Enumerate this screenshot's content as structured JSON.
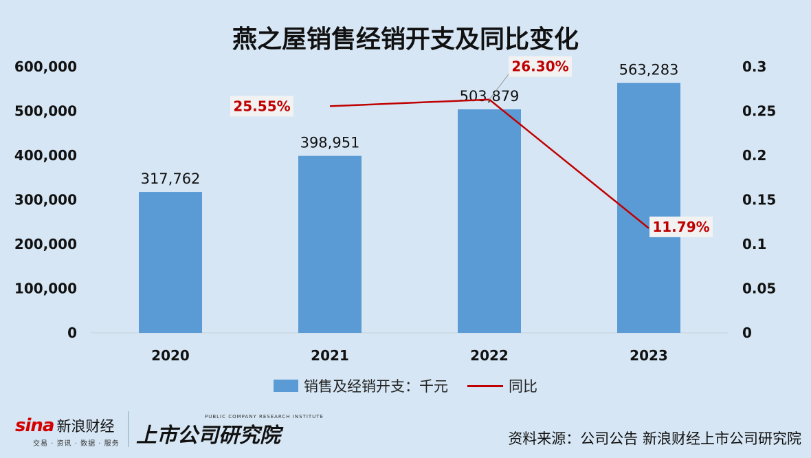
{
  "chart_data": {
    "type": "bar",
    "title": "燕之屋销售经销开支及同比变化",
    "categories": [
      "2020",
      "2021",
      "2022",
      "2023"
    ],
    "series": [
      {
        "name": "销售及经销开支：千元",
        "type": "bar",
        "axis": "left",
        "values": [
          317762,
          398951,
          503879,
          563283
        ],
        "labels": [
          "317,762",
          "398,951",
          "503,879",
          "563,283"
        ]
      },
      {
        "name": "同比",
        "type": "line",
        "axis": "right",
        "values": [
          null,
          0.2555,
          0.263,
          0.1179
        ],
        "labels": [
          "",
          "25.55%",
          "26.30%",
          "11.79%"
        ]
      }
    ],
    "left_axis": {
      "min": 0,
      "max": 600000,
      "ticks": [
        0,
        100000,
        200000,
        300000,
        400000,
        500000,
        600000
      ],
      "tick_labels": [
        "0",
        "100,000",
        "200,000",
        "300,000",
        "400,000",
        "500,000",
        "600,000"
      ]
    },
    "right_axis": {
      "min": 0,
      "max": 0.3,
      "ticks": [
        0,
        0.05,
        0.1,
        0.15,
        0.2,
        0.25,
        0.3
      ],
      "tick_labels": [
        "0",
        "0.05",
        "0.1",
        "0.15",
        "0.2",
        "0.25",
        "0.3"
      ]
    },
    "grid": false,
    "legend_position": "bottom",
    "colors": {
      "bar": "#5b9bd5",
      "line": "#c00000",
      "line_label": "#c00000"
    }
  },
  "legend": {
    "bar_label": "销售及经销开支：千元",
    "line_label": "同比"
  },
  "footer": {
    "sina_logo": "sina",
    "sina_cn": "新浪财经",
    "sina_sub": "交易 · 资讯 · 数据 · 服务",
    "institute": "上市公司研究院",
    "institute_sub": "PUBLIC COMPANY RESEARCH INSTITUTE",
    "source": "资料来源：公司公告 新浪财经上市公司研究院"
  }
}
